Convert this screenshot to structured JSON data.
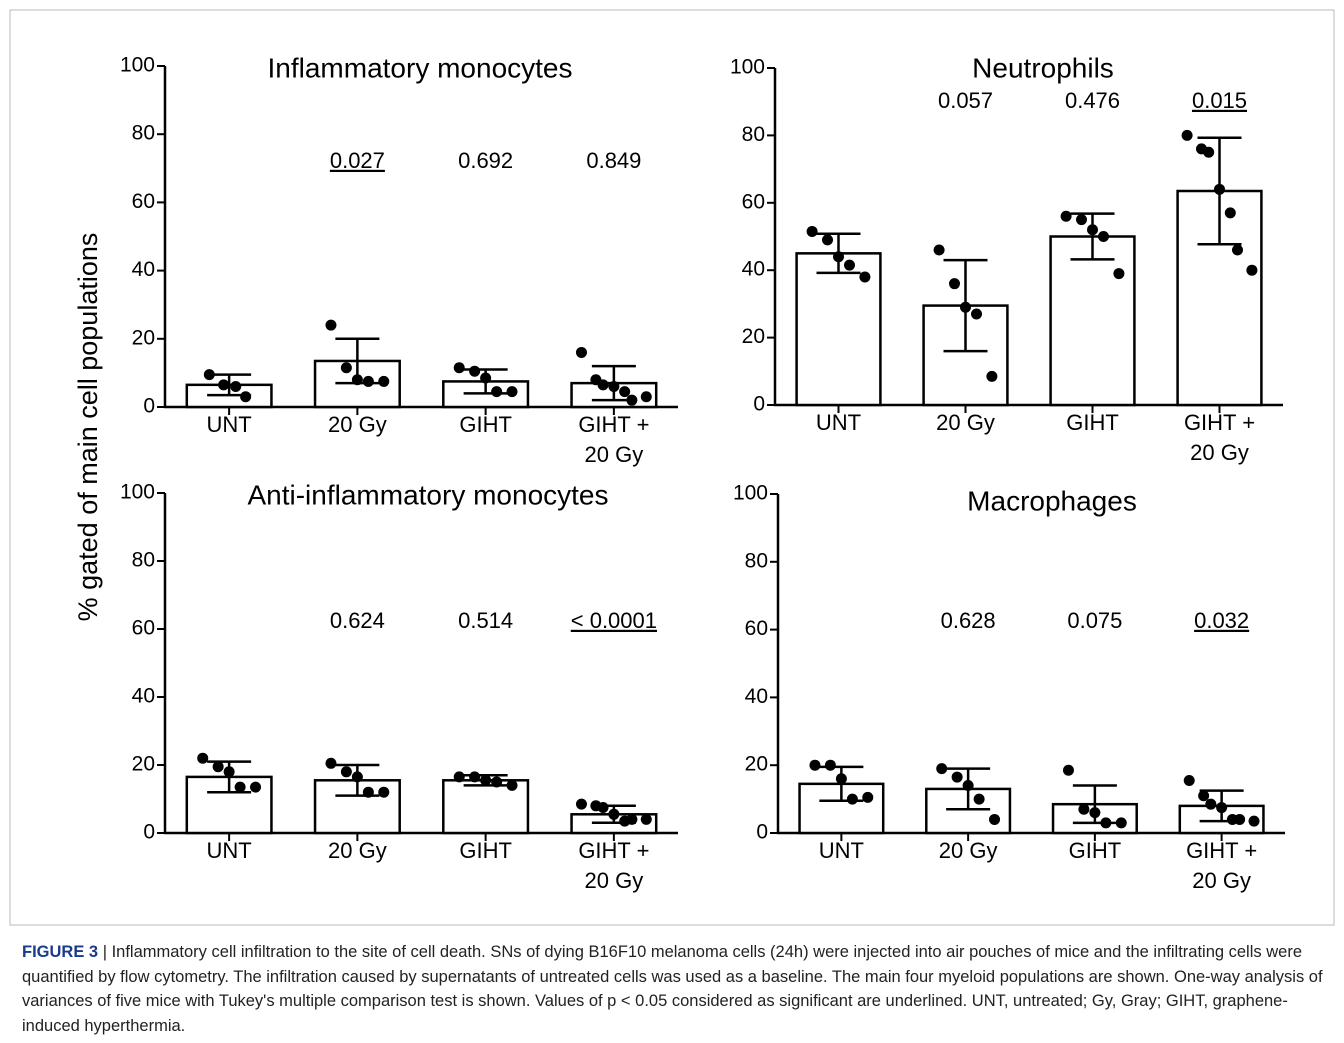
{
  "y_label": "% gated of main cell populations",
  "figure_label": "FIGURE 3",
  "caption": "| Inflammatory cell infiltration to the site of cell death. SNs of dying B16F10 melanoma cells (24h) were injected into air pouches of mice and the infiltrating cells were quantified by flow cytometry. The infiltration caused by supernatants of untreated cells was used as a baseline. The main four myeloid populations are shown. One-way analysis of variances of five mice with Tukey's multiple comparison test is shown. Values of p < 0.05 considered as significant are underlined. UNT, untreated; Gy, Gray; GIHT, graphene-induced hyperthermia.",
  "chart_data": [
    {
      "type": "bar",
      "title": "Inflammatory monocytes",
      "categories": [
        "UNT",
        "20 Gy",
        "GIHT",
        "GIHT + 20 Gy"
      ],
      "values": [
        6.5,
        13.5,
        7.5,
        7
      ],
      "errors": [
        3,
        6.5,
        3.5,
        5
      ],
      "points": [
        [
          9.5,
          6.5,
          6,
          3
        ],
        [
          24,
          11.5,
          8,
          7.5,
          7.5
        ],
        [
          11.5,
          10.5,
          8.5,
          4.5,
          4.5
        ],
        [
          16,
          8,
          6.5,
          6,
          4.5,
          2,
          3
        ]
      ],
      "p_values": [
        null,
        "0.027",
        "0.692",
        "0.849"
      ],
      "significant": [
        false,
        true,
        false,
        false
      ],
      "ylim": [
        0,
        100
      ],
      "yticks": [
        0,
        20,
        40,
        60,
        80,
        100
      ],
      "color": "#000000"
    },
    {
      "type": "bar",
      "title": "Neutrophils",
      "categories": [
        "UNT",
        "20 Gy",
        "GIHT",
        "GIHT + 20 Gy"
      ],
      "values": [
        45,
        29.5,
        50,
        63.5
      ],
      "errors": [
        5.8,
        13.5,
        6.8,
        15.8
      ],
      "points": [
        [
          51.5,
          49,
          44,
          41.5,
          38
        ],
        [
          46,
          36,
          29,
          27,
          8.5
        ],
        [
          56,
          55,
          52,
          50,
          39
        ],
        [
          80,
          76,
          75,
          64,
          57,
          46,
          40
        ]
      ],
      "p_values": [
        null,
        "0.057",
        "0.476",
        "0.015"
      ],
      "significant": [
        false,
        false,
        false,
        true
      ],
      "ylim": [
        0,
        100
      ],
      "yticks": [
        0,
        20,
        40,
        60,
        80,
        100
      ],
      "color": "#000000"
    },
    {
      "type": "bar",
      "title": "Anti-inflammatory monocytes",
      "categories": [
        "UNT",
        "20 Gy",
        "GIHT",
        "GIHT + 20 Gy"
      ],
      "values": [
        16.5,
        15.5,
        15.5,
        5.5
      ],
      "errors": [
        4.5,
        4.5,
        1.5,
        2.5
      ],
      "points": [
        [
          22,
          19.5,
          18,
          13.5,
          13.5
        ],
        [
          20.5,
          18,
          16.5,
          12,
          12
        ],
        [
          16.5,
          16.5,
          15.5,
          15,
          14
        ],
        [
          8.5,
          8,
          7.5,
          5.5,
          3.5,
          4,
          4
        ]
      ],
      "p_values": [
        null,
        "0.624",
        "0.514",
        "< 0.0001"
      ],
      "significant": [
        false,
        false,
        false,
        true
      ],
      "ylim": [
        0,
        100
      ],
      "yticks": [
        0,
        20,
        40,
        60,
        80,
        100
      ],
      "color": "#000000"
    },
    {
      "type": "bar",
      "title": "Macrophages",
      "categories": [
        "UNT",
        "20 Gy",
        "GIHT",
        "GIHT + 20 Gy"
      ],
      "values": [
        14.5,
        13,
        8.5,
        8
      ],
      "errors": [
        5,
        6,
        5.5,
        4.5
      ],
      "points": [
        [
          20,
          20,
          16,
          10,
          10.5
        ],
        [
          19,
          16.5,
          14,
          10,
          4
        ],
        [
          18.5,
          7,
          6,
          3,
          3
        ],
        [
          15.5,
          11,
          8.5,
          7.5,
          4,
          4,
          3.5
        ]
      ],
      "p_values": [
        null,
        "0.628",
        "0.075",
        "0.032"
      ],
      "significant": [
        false,
        false,
        false,
        true
      ],
      "ylim": [
        0,
        100
      ],
      "yticks": [
        0,
        20,
        40,
        60,
        80,
        100
      ],
      "color": "#000000"
    }
  ]
}
